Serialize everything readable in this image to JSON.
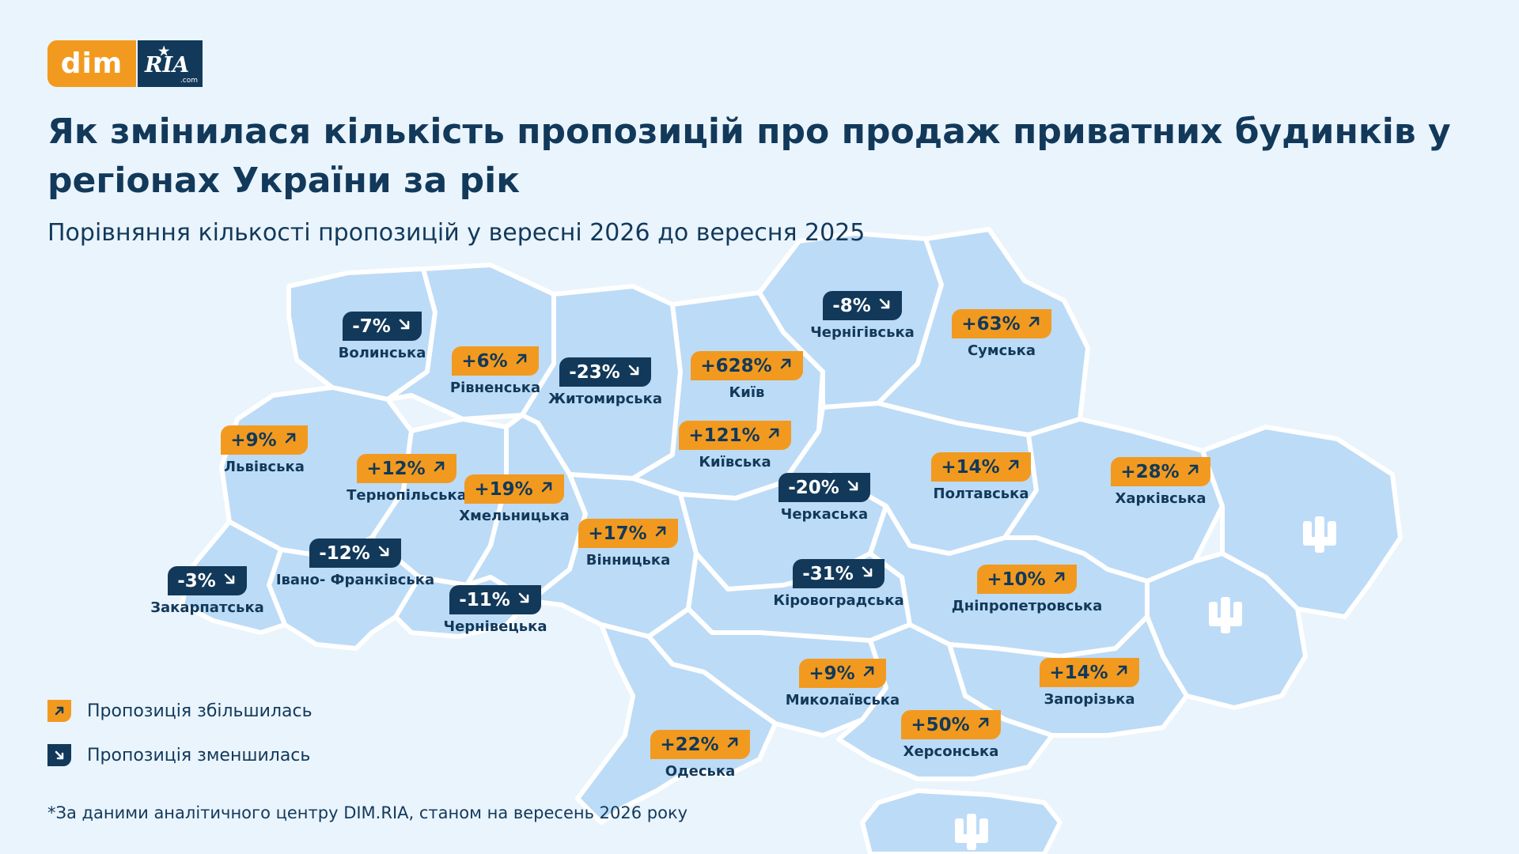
{
  "brand": {
    "logo_left": "dim",
    "logo_right": "RIA",
    "logo_suffix": ".com",
    "orange": "#f29a1f",
    "navy": "#12395a",
    "map_fill": "#bcdbf7",
    "background": "#eaf4fd"
  },
  "title": "Як змінилася кількість пропозицій про продаж приватних будинків у регіонах України за рік",
  "subtitle": "Порівняння кількості пропозицій у вересні 2026 до вересня 2025",
  "regions": [
    {
      "name": "Волинська",
      "value": "-7%",
      "trend": "down"
    },
    {
      "name": "Рівненська",
      "value": "+6%",
      "trend": "up"
    },
    {
      "name": "Житомирська",
      "value": "-23%",
      "trend": "down"
    },
    {
      "name": "Київ",
      "value": "+628%",
      "trend": "up"
    },
    {
      "name": "Чернігівська",
      "value": "-8%",
      "trend": "down"
    },
    {
      "name": "Сумська",
      "value": "+63%",
      "trend": "up"
    },
    {
      "name": "Львівська",
      "value": "+9%",
      "trend": "up"
    },
    {
      "name": "Тернопільська",
      "value": "+12%",
      "trend": "up"
    },
    {
      "name": "Хмельницька",
      "value": "+19%",
      "trend": "up"
    },
    {
      "name": "Київська",
      "value": "+121%",
      "trend": "up"
    },
    {
      "name": "Черкаська",
      "value": "-20%",
      "trend": "down"
    },
    {
      "name": "Полтавська",
      "value": "+14%",
      "trend": "up"
    },
    {
      "name": "Харківська",
      "value": "+28%",
      "trend": "up"
    },
    {
      "name": "Вінницька",
      "value": "+17%",
      "trend": "up"
    },
    {
      "name": "Івано- Франківська",
      "value": "-12%",
      "trend": "down"
    },
    {
      "name": "Закарпатська",
      "value": "-3%",
      "trend": "down"
    },
    {
      "name": "Чернівецька",
      "value": "-11%",
      "trend": "down"
    },
    {
      "name": "Кіровоградська",
      "value": "-31%",
      "trend": "down"
    },
    {
      "name": "Дніпропетровська",
      "value": "+10%",
      "trend": "up"
    },
    {
      "name": "Миколаївська",
      "value": "+9%",
      "trend": "up"
    },
    {
      "name": "Запорізька",
      "value": "+14%",
      "trend": "up"
    },
    {
      "name": "Херсонська",
      "value": "+50%",
      "trend": "up"
    },
    {
      "name": "Одеська",
      "value": "+22%",
      "trend": "up"
    }
  ],
  "legend": {
    "increase": "Пропозиція збільшилась",
    "decrease": "Пропозиція зменшилась"
  },
  "footnote": "*За даними аналітичного центру DIM.RIA, станом на вересень 2026 року",
  "icons": {
    "up": "arrow-up-right-icon",
    "down": "arrow-down-right-icon",
    "emblem": "trident-icon"
  }
}
